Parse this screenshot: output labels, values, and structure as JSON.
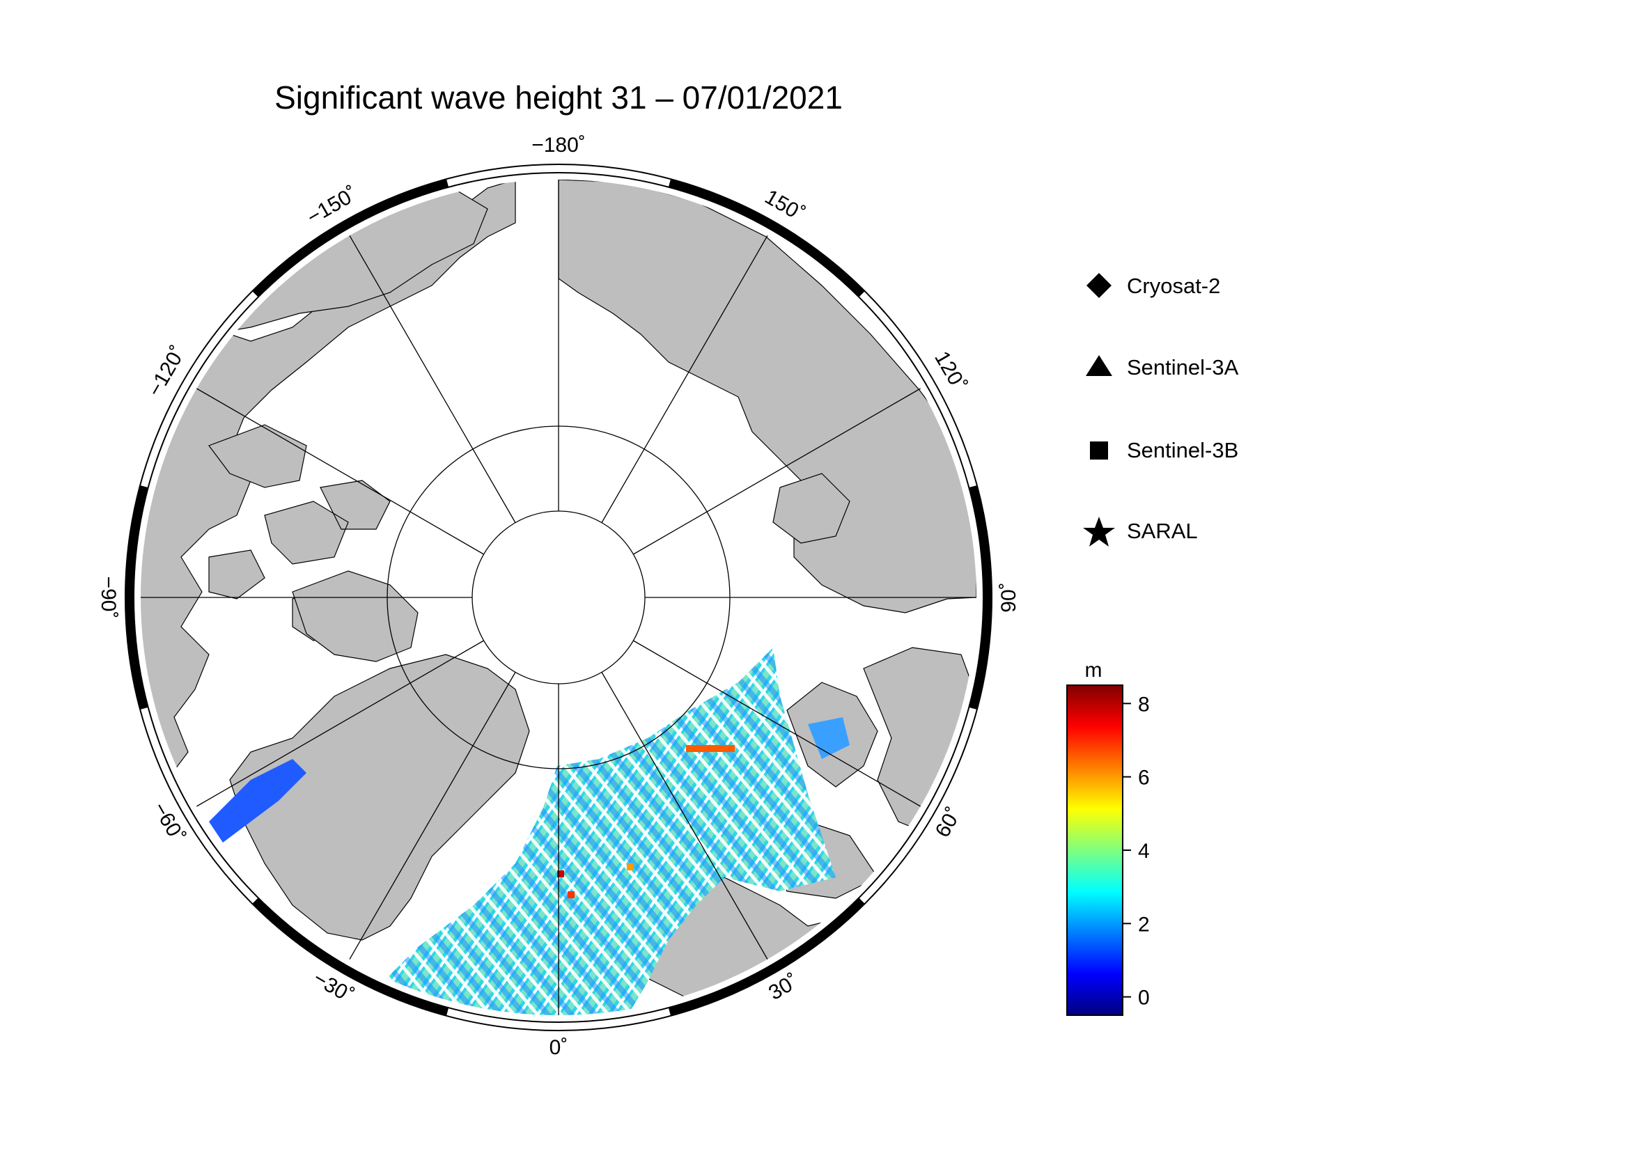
{
  "title": "Significant wave height 31 – 07/01/2021",
  "map": {
    "projection": "north-polar-stereographic",
    "meridian_labels": [
      {
        "lon": -180,
        "text": "−180˚"
      },
      {
        "lon": -150,
        "text": "−150˚"
      },
      {
        "lon": -120,
        "text": "−120˚"
      },
      {
        "lon": -90,
        "text": "−90˚"
      },
      {
        "lon": -60,
        "text": "−60˚"
      },
      {
        "lon": -30,
        "text": "−30˚"
      },
      {
        "lon": 0,
        "text": "0˚"
      },
      {
        "lon": 30,
        "text": "30˚"
      },
      {
        "lon": 60,
        "text": "60˚"
      },
      {
        "lon": 90,
        "text": "90˚"
      },
      {
        "lon": 120,
        "text": "120˚"
      },
      {
        "lon": 150,
        "text": "150˚"
      }
    ],
    "land_color": "#bebebe",
    "ocean_color": "#ffffff"
  },
  "legend": [
    {
      "label": "Cryosat-2",
      "symbol": "diamond"
    },
    {
      "label": "Sentinel-3A",
      "symbol": "triangle"
    },
    {
      "label": "Sentinel-3B",
      "symbol": "square"
    },
    {
      "label": "SARAL",
      "symbol": "star"
    }
  ],
  "colorbar": {
    "unit": "m",
    "min": -0.5,
    "max": 8.5,
    "ticks": [
      0,
      2,
      4,
      6,
      8
    ],
    "colors": [
      "#00007f",
      "#0000ff",
      "#007fff",
      "#00ffff",
      "#7fff7f",
      "#ffff00",
      "#ff7f00",
      "#ff0000",
      "#7f0000"
    ]
  }
}
